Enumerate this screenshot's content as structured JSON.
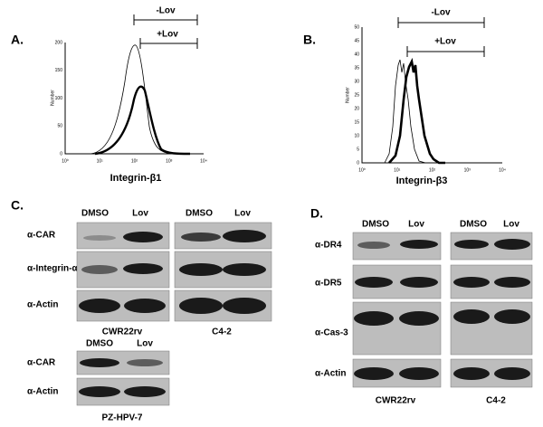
{
  "histograms": [
    {
      "label": "A.",
      "y_axis_label": "Number",
      "x_axis_label": "Integrin-β1",
      "yticks": [
        "0",
        "50",
        "100",
        "150",
        "200"
      ],
      "xticks": [
        "10⁰",
        "10¹",
        "10²",
        "10³",
        "10⁴"
      ],
      "brackets": [
        "-Lov",
        "+Lov"
      ]
    },
    {
      "label": "B.",
      "y_axis_label": "Number",
      "x_axis_label": "Integrin-β3",
      "yticks": [
        "0",
        "5",
        "10",
        "15",
        "20",
        "25",
        "30",
        "35",
        "40",
        "45",
        "50"
      ],
      "xticks": [
        "10⁰",
        "10¹",
        "10²",
        "10³",
        "10⁴"
      ],
      "brackets": [
        "-Lov",
        "+Lov"
      ]
    }
  ],
  "blots": [
    {
      "label": "C.",
      "groups": [
        {
          "headers": [
            "DMSO",
            "Lov"
          ],
          "rows": [
            "α-CAR",
            "α-Integrin-αv",
            "α-Actin"
          ],
          "cell_line": "CWR22rv"
        },
        {
          "headers": [
            "DMSO",
            "Lov"
          ],
          "cell_line": "C4-2"
        },
        {
          "headers": [
            "DMSO",
            "Lov"
          ],
          "rows": [
            "α-CAR",
            "α-Actin"
          ],
          "cell_line": "PZ-HPV-7"
        }
      ]
    },
    {
      "label": "D.",
      "groups": [
        {
          "headers": [
            "DMSO",
            "Lov"
          ],
          "rows": [
            "α-DR4",
            "α-DR5",
            "α-Cas-3",
            "α-Actin"
          ],
          "cell_line": "CWR22rv"
        },
        {
          "headers": [
            "DMSO",
            "Lov"
          ],
          "cell_line": "C4-2"
        }
      ]
    }
  ]
}
